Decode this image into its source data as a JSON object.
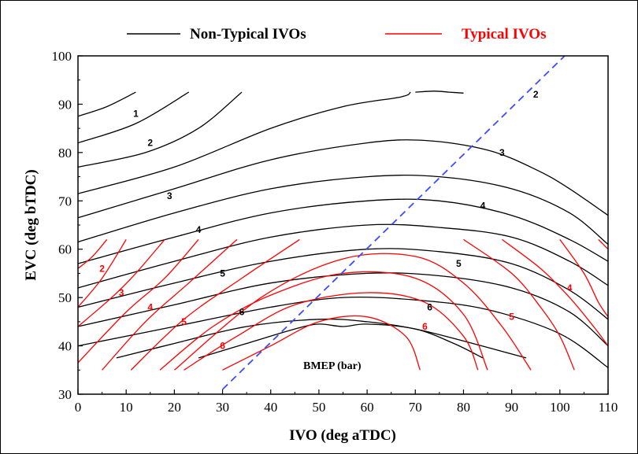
{
  "chart_data": {
    "type": "line",
    "title": "",
    "xlabel": "IVO (deg aTDC)",
    "ylabel": "EVC (deg bTDC)",
    "xlim": [
      0,
      110
    ],
    "ylim": [
      30,
      100
    ],
    "x_ticks": [
      "0",
      "10",
      "20",
      "30",
      "40",
      "50",
      "60",
      "70",
      "80",
      "90",
      "100",
      "110"
    ],
    "y_ticks": [
      "30",
      "40",
      "50",
      "60",
      "70",
      "80",
      "90",
      "100"
    ],
    "legend": {
      "placement": "top",
      "entries": [
        {
          "name": "Non-Typical IVOs",
          "color": "#000000"
        },
        {
          "name": "Typical IVOs",
          "color": "#ff0000"
        }
      ]
    },
    "annotation": "BMEP (bar)",
    "reference_line": {
      "style": "dashed",
      "color": "#3b4cff",
      "from": [
        30,
        31
      ],
      "to": [
        101,
        100
      ]
    },
    "grid": false,
    "contour_labels": [
      {
        "text": "1",
        "x": 12,
        "y": 88,
        "color": "#000000"
      },
      {
        "text": "2",
        "x": 15,
        "y": 82,
        "color": "#000000"
      },
      {
        "text": "3",
        "x": 19,
        "y": 71,
        "color": "#000000"
      },
      {
        "text": "4",
        "x": 25,
        "y": 64,
        "color": "#000000"
      },
      {
        "text": "5",
        "x": 30,
        "y": 55,
        "color": "#000000"
      },
      {
        "text": "6",
        "x": 34,
        "y": 47,
        "color": "#000000"
      },
      {
        "text": "2",
        "x": 95,
        "y": 92,
        "color": "#000000"
      },
      {
        "text": "3",
        "x": 88,
        "y": 80,
        "color": "#000000"
      },
      {
        "text": "4",
        "x": 84,
        "y": 69,
        "color": "#000000"
      },
      {
        "text": "5",
        "x": 79,
        "y": 57,
        "color": "#000000"
      },
      {
        "text": "6",
        "x": 73,
        "y": 48,
        "color": "#000000"
      },
      {
        "text": "2",
        "x": 5,
        "y": 56,
        "color": "#ff0000"
      },
      {
        "text": "3",
        "x": 9,
        "y": 51,
        "color": "#ff0000"
      },
      {
        "text": "4",
        "x": 15,
        "y": 48,
        "color": "#ff0000"
      },
      {
        "text": "5",
        "x": 22,
        "y": 45,
        "color": "#ff0000"
      },
      {
        "text": "6",
        "x": 30,
        "y": 40,
        "color": "#ff0000"
      },
      {
        "text": "6",
        "x": 72,
        "y": 44,
        "color": "#ff0000"
      },
      {
        "text": "5",
        "x": 90,
        "y": 46,
        "color": "#ff0000"
      },
      {
        "text": "4",
        "x": 102,
        "y": 52,
        "color": "#ff0000"
      }
    ],
    "series": [
      {
        "name": "Non-Typical IVOs",
        "color": "#000000",
        "x": [
          0,
          6,
          12
        ],
        "y": [
          87.5,
          89.5,
          92.5
        ]
      },
      {
        "name": "Non-Typical IVOs",
        "color": "#000000",
        "x": [
          0,
          12,
          23
        ],
        "y": [
          82,
          86,
          92.5
        ]
      },
      {
        "name": "Non-Typical IVOs",
        "color": "#000000",
        "x": [
          0,
          14,
          25,
          34
        ],
        "y": [
          77,
          80,
          85,
          92.5
        ]
      },
      {
        "name": "Non-Typical IVOs",
        "color": "#000000",
        "x": [
          0,
          20,
          40,
          55,
          67,
          69
        ],
        "y": [
          71.5,
          77,
          85,
          89.5,
          91.5,
          92.5
        ]
      },
      {
        "name": "Non-Typical IVOs",
        "color": "#000000",
        "x": [
          70,
          74,
          77,
          80
        ],
        "y": [
          92.5,
          92.7,
          92.5,
          92.3
        ]
      },
      {
        "name": "Non-Typical IVOs",
        "color": "#000000",
        "x": [
          0,
          20,
          40,
          60,
          72,
          85,
          95,
          102,
          110
        ],
        "y": [
          66.5,
          72.5,
          78.5,
          82,
          82.5,
          80.5,
          76.5,
          72.5,
          67
        ]
      },
      {
        "name": "Non-Typical IVOs",
        "color": "#000000",
        "x": [
          0,
          20,
          40,
          60,
          75,
          90,
          102,
          110
        ],
        "y": [
          61.5,
          67.5,
          72.5,
          75,
          75,
          72.5,
          67.5,
          61
        ]
      },
      {
        "name": "Non-Typical IVOs",
        "color": "#000000",
        "x": [
          0,
          20,
          40,
          60,
          75,
          90,
          102,
          110
        ],
        "y": [
          57,
          62.5,
          67.5,
          70,
          70,
          67,
          62,
          57.5
        ]
      },
      {
        "name": "Non-Typical IVOs",
        "color": "#000000",
        "x": [
          0,
          20,
          40,
          60,
          75,
          90,
          102,
          110
        ],
        "y": [
          52,
          57.5,
          62.5,
          65,
          64.5,
          62.5,
          57.5,
          52.5
        ]
      },
      {
        "name": "Non-Typical IVOs",
        "color": "#000000",
        "x": [
          0,
          20,
          40,
          60,
          75,
          90,
          102,
          110
        ],
        "y": [
          48,
          53,
          57.5,
          60,
          59.5,
          57,
          51.5,
          45.5
        ]
      },
      {
        "name": "Non-Typical IVOs",
        "color": "#000000",
        "x": [
          0,
          20,
          40,
          60,
          75,
          90,
          102,
          110
        ],
        "y": [
          44,
          48.5,
          53,
          55,
          54.5,
          52,
          47,
          40
        ]
      },
      {
        "name": "Non-Typical IVOs",
        "color": "#000000",
        "x": [
          0,
          20,
          40,
          55,
          70,
          85,
          100,
          110
        ],
        "y": [
          40,
          44,
          48,
          50,
          49.5,
          47.5,
          42.5,
          35.5
        ]
      },
      {
        "name": "Non-Typical IVOs",
        "color": "#000000",
        "x": [
          8,
          20,
          35,
          50,
          60,
          70,
          80,
          93
        ],
        "y": [
          37.5,
          40.5,
          44,
          45.5,
          45,
          43.5,
          41,
          37.5
        ]
      },
      {
        "name": "Non-Typical IVOs",
        "color": "#000000",
        "x": [
          25,
          35,
          45,
          50,
          55,
          60,
          70,
          78,
          84
        ],
        "y": [
          37.5,
          40.5,
          43.5,
          44.5,
          44,
          44.5,
          43.5,
          40.5,
          37.5
        ]
      },
      {
        "name": "Typical IVOs",
        "color": "#ff0000",
        "x": [
          0,
          3,
          6
        ],
        "y": [
          56,
          58.5,
          62
        ]
      },
      {
        "name": "Typical IVOs",
        "color": "#ff0000",
        "x": [
          0,
          5,
          10
        ],
        "y": [
          48,
          54,
          62
        ]
      },
      {
        "name": "Typical IVOs",
        "color": "#ff0000",
        "x": [
          0,
          7,
          12,
          18
        ],
        "y": [
          44,
          50,
          55,
          62
        ]
      },
      {
        "name": "Typical IVOs",
        "color": "#ff0000",
        "x": [
          0,
          10,
          18,
          25
        ],
        "y": [
          36.5,
          47,
          54,
          62
        ]
      },
      {
        "name": "Typical IVOs",
        "color": "#ff0000",
        "x": [
          5,
          14,
          23,
          33
        ],
        "y": [
          35,
          45,
          53,
          62
        ]
      },
      {
        "name": "Typical IVOs",
        "color": "#ff0000",
        "x": [
          11,
          22,
          34,
          46
        ],
        "y": [
          35,
          45.5,
          54,
          62
        ]
      },
      {
        "name": "Typical IVOs",
        "color": "#ff0000",
        "x": [
          17,
          28,
          40,
          55,
          70,
          80,
          85
        ],
        "y": [
          35,
          44,
          50.5,
          55,
          54,
          46.5,
          35
        ]
      },
      {
        "name": "Typical IVOs",
        "color": "#ff0000",
        "x": [
          22,
          33,
          45,
          60,
          72,
          80,
          83
        ],
        "y": [
          35,
          42,
          48.5,
          51,
          49,
          42,
          35
        ]
      },
      {
        "name": "Typical IVOs",
        "color": "#ff0000",
        "x": [
          30,
          40,
          50,
          60,
          68,
          71
        ],
        "y": [
          35,
          40,
          45,
          46,
          42,
          35
        ]
      },
      {
        "name": "Typical IVOs",
        "color": "#ff0000",
        "x": [
          20,
          38,
          55,
          70,
          80,
          88,
          94
        ],
        "y": [
          35,
          50,
          58,
          58.5,
          53,
          44,
          35
        ]
      },
      {
        "name": "Typical IVOs",
        "color": "#ff0000",
        "x": [
          80,
          90,
          96,
          100,
          103
        ],
        "y": [
          62,
          55,
          48,
          42,
          35
        ]
      },
      {
        "name": "Typical IVOs",
        "color": "#ff0000",
        "x": [
          88,
          96,
          102,
          107,
          110
        ],
        "y": [
          62,
          56,
          50,
          44,
          40
        ]
      },
      {
        "name": "Typical IVOs",
        "color": "#ff0000",
        "x": [
          100,
          105,
          108,
          110
        ],
        "y": [
          62,
          55,
          49,
          46
        ]
      },
      {
        "name": "Typical IVOs",
        "color": "#ff0000",
        "x": [
          108,
          109,
          110
        ],
        "y": [
          62,
          61,
          60
        ]
      }
    ]
  }
}
